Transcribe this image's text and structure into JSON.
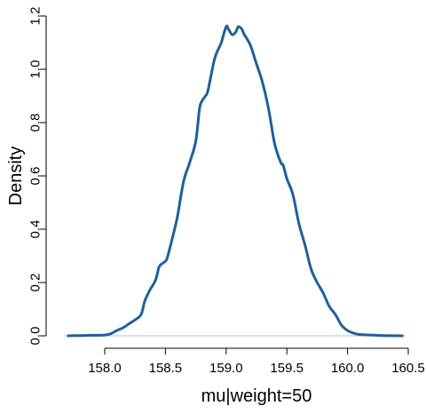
{
  "chart_data": {
    "type": "line",
    "title": "",
    "xlabel": "mu|weight=50",
    "ylabel": "Density",
    "xlim": [
      157.62,
      160.5
    ],
    "ylim": [
      0.0,
      1.2
    ],
    "x_ticks": [
      158.0,
      158.5,
      159.0,
      159.5,
      160.0,
      160.5
    ],
    "x_tick_labels": [
      "158.0",
      "158.5",
      "159.0",
      "159.5",
      "160.0",
      "160.5"
    ],
    "y_ticks": [
      0.0,
      0.2,
      0.4,
      0.6,
      0.8,
      1.0,
      1.2
    ],
    "y_tick_labels": [
      "0.0",
      "0.2",
      "0.4",
      "0.6",
      "0.8",
      "1.0",
      "1.2"
    ],
    "grid": false,
    "legend": "none",
    "baseline": 0.0,
    "colors": {
      "line": "#1f5f9c",
      "baseline": "#bdbdbd",
      "axis": "#000000"
    },
    "series": [
      {
        "x": [
          157.7,
          157.8,
          157.9,
          158.0,
          158.05,
          158.1,
          158.15,
          158.2,
          158.25,
          158.3,
          158.33,
          158.37,
          158.42,
          158.45,
          158.5,
          158.52,
          158.57,
          158.6,
          158.65,
          158.7,
          158.75,
          158.78,
          158.8,
          158.83,
          158.85,
          158.9,
          158.93,
          158.96,
          159.0,
          159.02,
          159.05,
          159.08,
          159.1,
          159.13,
          159.15,
          159.2,
          159.25,
          159.3,
          159.35,
          159.4,
          159.45,
          159.47,
          159.5,
          159.55,
          159.6,
          159.65,
          159.7,
          159.75,
          159.8,
          159.85,
          159.9,
          159.95,
          160.0,
          160.05,
          160.1,
          160.2,
          160.3,
          160.45
        ],
        "y": [
          0.0,
          0.001,
          0.002,
          0.003,
          0.008,
          0.02,
          0.03,
          0.045,
          0.06,
          0.08,
          0.13,
          0.17,
          0.21,
          0.26,
          0.28,
          0.3,
          0.39,
          0.45,
          0.58,
          0.65,
          0.73,
          0.85,
          0.88,
          0.9,
          0.92,
          1.03,
          1.07,
          1.1,
          1.16,
          1.15,
          1.13,
          1.14,
          1.16,
          1.15,
          1.13,
          1.09,
          1.02,
          0.95,
          0.85,
          0.72,
          0.65,
          0.64,
          0.59,
          0.53,
          0.42,
          0.34,
          0.25,
          0.2,
          0.16,
          0.11,
          0.08,
          0.04,
          0.02,
          0.01,
          0.005,
          0.003,
          0.001,
          0.0
        ]
      }
    ]
  }
}
